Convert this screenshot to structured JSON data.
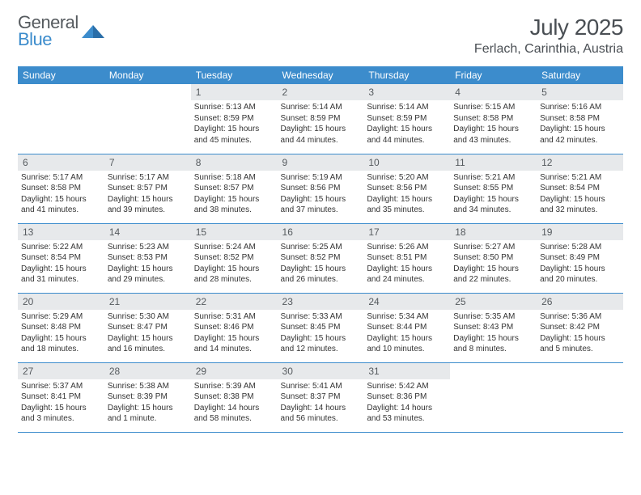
{
  "brand": {
    "line1": "General",
    "line2": "Blue",
    "tri_color": "#3c8ccc"
  },
  "title": {
    "month": "July 2025",
    "location": "Ferlach, Carinthia, Austria"
  },
  "style": {
    "header_bg": "#3c8ccc",
    "header_text": "#ffffff",
    "daynum_bg": "#e7e9eb",
    "daynum_text": "#555a5e",
    "body_text": "#333333",
    "row_border": "#3c8ccc",
    "th_fontsize": 12,
    "day_fontsize": 10
  },
  "weekdays": [
    "Sunday",
    "Monday",
    "Tuesday",
    "Wednesday",
    "Thursday",
    "Friday",
    "Saturday"
  ],
  "first_weekday_index": 2,
  "days": [
    {
      "n": 1,
      "sunrise": "5:13 AM",
      "sunset": "8:59 PM",
      "daylight": "15 hours and 45 minutes."
    },
    {
      "n": 2,
      "sunrise": "5:14 AM",
      "sunset": "8:59 PM",
      "daylight": "15 hours and 44 minutes."
    },
    {
      "n": 3,
      "sunrise": "5:14 AM",
      "sunset": "8:59 PM",
      "daylight": "15 hours and 44 minutes."
    },
    {
      "n": 4,
      "sunrise": "5:15 AM",
      "sunset": "8:58 PM",
      "daylight": "15 hours and 43 minutes."
    },
    {
      "n": 5,
      "sunrise": "5:16 AM",
      "sunset": "8:58 PM",
      "daylight": "15 hours and 42 minutes."
    },
    {
      "n": 6,
      "sunrise": "5:17 AM",
      "sunset": "8:58 PM",
      "daylight": "15 hours and 41 minutes."
    },
    {
      "n": 7,
      "sunrise": "5:17 AM",
      "sunset": "8:57 PM",
      "daylight": "15 hours and 39 minutes."
    },
    {
      "n": 8,
      "sunrise": "5:18 AM",
      "sunset": "8:57 PM",
      "daylight": "15 hours and 38 minutes."
    },
    {
      "n": 9,
      "sunrise": "5:19 AM",
      "sunset": "8:56 PM",
      "daylight": "15 hours and 37 minutes."
    },
    {
      "n": 10,
      "sunrise": "5:20 AM",
      "sunset": "8:56 PM",
      "daylight": "15 hours and 35 minutes."
    },
    {
      "n": 11,
      "sunrise": "5:21 AM",
      "sunset": "8:55 PM",
      "daylight": "15 hours and 34 minutes."
    },
    {
      "n": 12,
      "sunrise": "5:21 AM",
      "sunset": "8:54 PM",
      "daylight": "15 hours and 32 minutes."
    },
    {
      "n": 13,
      "sunrise": "5:22 AM",
      "sunset": "8:54 PM",
      "daylight": "15 hours and 31 minutes."
    },
    {
      "n": 14,
      "sunrise": "5:23 AM",
      "sunset": "8:53 PM",
      "daylight": "15 hours and 29 minutes."
    },
    {
      "n": 15,
      "sunrise": "5:24 AM",
      "sunset": "8:52 PM",
      "daylight": "15 hours and 28 minutes."
    },
    {
      "n": 16,
      "sunrise": "5:25 AM",
      "sunset": "8:52 PM",
      "daylight": "15 hours and 26 minutes."
    },
    {
      "n": 17,
      "sunrise": "5:26 AM",
      "sunset": "8:51 PM",
      "daylight": "15 hours and 24 minutes."
    },
    {
      "n": 18,
      "sunrise": "5:27 AM",
      "sunset": "8:50 PM",
      "daylight": "15 hours and 22 minutes."
    },
    {
      "n": 19,
      "sunrise": "5:28 AM",
      "sunset": "8:49 PM",
      "daylight": "15 hours and 20 minutes."
    },
    {
      "n": 20,
      "sunrise": "5:29 AM",
      "sunset": "8:48 PM",
      "daylight": "15 hours and 18 minutes."
    },
    {
      "n": 21,
      "sunrise": "5:30 AM",
      "sunset": "8:47 PM",
      "daylight": "15 hours and 16 minutes."
    },
    {
      "n": 22,
      "sunrise": "5:31 AM",
      "sunset": "8:46 PM",
      "daylight": "15 hours and 14 minutes."
    },
    {
      "n": 23,
      "sunrise": "5:33 AM",
      "sunset": "8:45 PM",
      "daylight": "15 hours and 12 minutes."
    },
    {
      "n": 24,
      "sunrise": "5:34 AM",
      "sunset": "8:44 PM",
      "daylight": "15 hours and 10 minutes."
    },
    {
      "n": 25,
      "sunrise": "5:35 AM",
      "sunset": "8:43 PM",
      "daylight": "15 hours and 8 minutes."
    },
    {
      "n": 26,
      "sunrise": "5:36 AM",
      "sunset": "8:42 PM",
      "daylight": "15 hours and 5 minutes."
    },
    {
      "n": 27,
      "sunrise": "5:37 AM",
      "sunset": "8:41 PM",
      "daylight": "15 hours and 3 minutes."
    },
    {
      "n": 28,
      "sunrise": "5:38 AM",
      "sunset": "8:39 PM",
      "daylight": "15 hours and 1 minute."
    },
    {
      "n": 29,
      "sunrise": "5:39 AM",
      "sunset": "8:38 PM",
      "daylight": "14 hours and 58 minutes."
    },
    {
      "n": 30,
      "sunrise": "5:41 AM",
      "sunset": "8:37 PM",
      "daylight": "14 hours and 56 minutes."
    },
    {
      "n": 31,
      "sunrise": "5:42 AM",
      "sunset": "8:36 PM",
      "daylight": "14 hours and 53 minutes."
    }
  ],
  "labels": {
    "sunrise": "Sunrise:",
    "sunset": "Sunset:",
    "daylight": "Daylight:"
  }
}
